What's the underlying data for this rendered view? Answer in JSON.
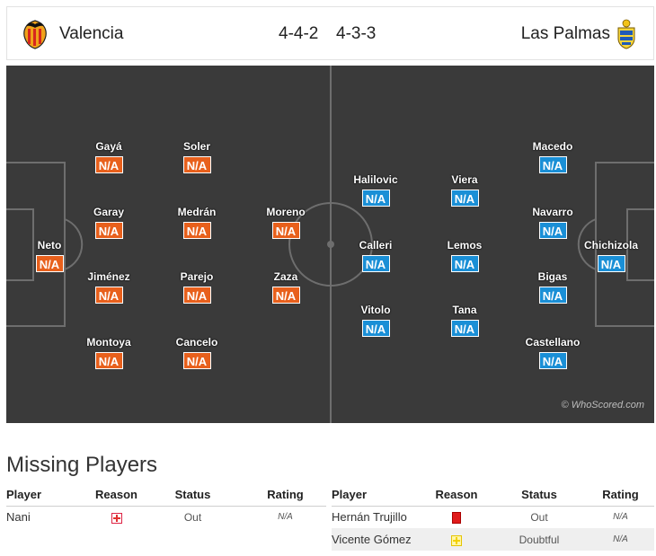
{
  "header": {
    "home_team": "Valencia",
    "away_team": "Las Palmas",
    "home_formation": "4-4-2",
    "away_formation": "4-3-3",
    "home_logo": "valencia-bat-crest",
    "away_logo": "las-palmas-crest"
  },
  "pitch": {
    "color": "#3a3a3a",
    "watermark": "© WhoScored.com",
    "home_players": [
      {
        "name": "Neto",
        "rating": "N/A"
      },
      {
        "name": "Gayá",
        "rating": "N/A"
      },
      {
        "name": "Garay",
        "rating": "N/A"
      },
      {
        "name": "Jiménez",
        "rating": "N/A"
      },
      {
        "name": "Montoya",
        "rating": "N/A"
      },
      {
        "name": "Soler",
        "rating": "N/A"
      },
      {
        "name": "Medrán",
        "rating": "N/A"
      },
      {
        "name": "Parejo",
        "rating": "N/A"
      },
      {
        "name": "Cancelo",
        "rating": "N/A"
      },
      {
        "name": "Moreno",
        "rating": "N/A"
      },
      {
        "name": "Zaza",
        "rating": "N/A"
      }
    ],
    "away_players": [
      {
        "name": "Halilovic",
        "rating": "N/A"
      },
      {
        "name": "Calleri",
        "rating": "N/A"
      },
      {
        "name": "Vitolo",
        "rating": "N/A"
      },
      {
        "name": "Viera",
        "rating": "N/A"
      },
      {
        "name": "Lemos",
        "rating": "N/A"
      },
      {
        "name": "Tana",
        "rating": "N/A"
      },
      {
        "name": "Macedo",
        "rating": "N/A"
      },
      {
        "name": "Navarro",
        "rating": "N/A"
      },
      {
        "name": "Bigas",
        "rating": "N/A"
      },
      {
        "name": "Castellano",
        "rating": "N/A"
      },
      {
        "name": "Chichizola",
        "rating": "N/A"
      }
    ],
    "home_rating_color": "#e8601c",
    "away_rating_color": "#1a8fd6"
  },
  "missing": {
    "title": "Missing Players",
    "columns": {
      "player": "Player",
      "reason": "Reason",
      "status": "Status",
      "rating": "Rating"
    },
    "home": [
      {
        "player": "Nani",
        "reason_icon": "injury-icon",
        "status": "Out",
        "rating": "N/A"
      }
    ],
    "away": [
      {
        "player": "Hernán Trujillo",
        "reason_icon": "red-card-icon",
        "status": "Out",
        "rating": "N/A"
      },
      {
        "player": "Vicente Gómez",
        "reason_icon": "doubtful-icon",
        "status": "Doubtful",
        "rating": "N/A"
      }
    ]
  }
}
